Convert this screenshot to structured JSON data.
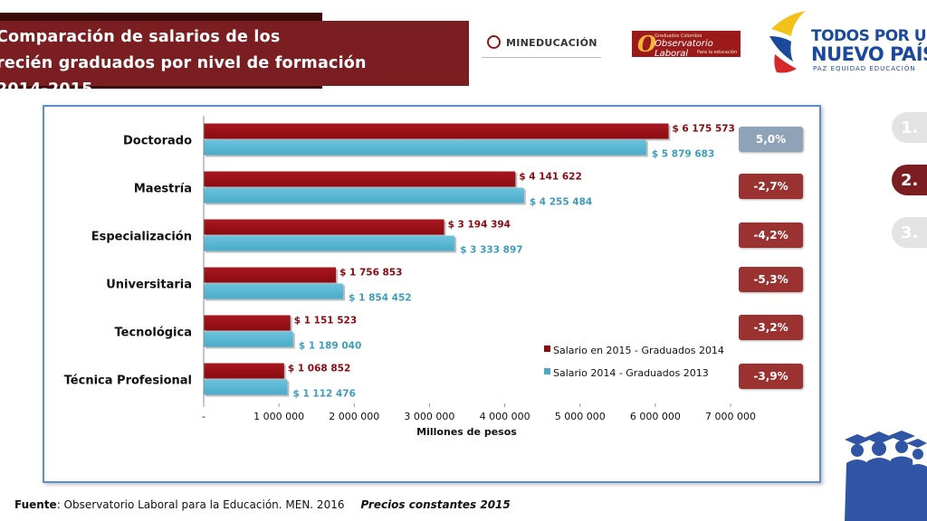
{
  "title": {
    "line1": "Comparación de salarios de los",
    "line2": "recién graduados por nivel de formación",
    "line3": "2014-2015"
  },
  "logos": {
    "men": "MINEDUCACIÓN",
    "ole_small1": "Graduados Colombia",
    "ole_main": "Observatorio Laboral",
    "ole_small2": "Para la educación",
    "gov_line1": "TODOS POR UN",
    "gov_line2": "NUEVO PAÍS",
    "gov_line3": "PAZ  EQUIDAD  EDUCACIÓN"
  },
  "nav": [
    "1.",
    "2.",
    "3."
  ],
  "footer": {
    "source_label": "Fuente",
    "source_text": ": Observatorio Laboral para la Educación. MEN. 2016",
    "prices": "Precios constantes  2015"
  },
  "colors": {
    "series2015": "#8b0a10",
    "series2014": "#4aabc9",
    "badge_positive": "#8fa3b8",
    "badge_negative": "#9b3232"
  },
  "chart_data": {
    "type": "bar",
    "orientation": "horizontal",
    "xlabel": "Millones de pesos",
    "xlim": [
      0,
      7000000
    ],
    "xticks": [
      "-",
      "1 000 000",
      "2 000 000",
      "3 000 000",
      "4 000 000",
      "5 000 000",
      "6 000 000",
      "7 000 000"
    ],
    "categories": [
      "Doctorado",
      "Maestría",
      "Especialización",
      "Universitaria",
      "Tecnológica",
      "Técnica Profesional"
    ],
    "series": [
      {
        "name": "Salario en 2015 - Graduados 2014",
        "values": [
          6175573,
          4141622,
          3194394,
          1756853,
          1151523,
          1068852
        ],
        "labels": [
          "$ 6 175 573",
          "$ 4 141 622",
          "$ 3 194 394",
          "$ 1 756 853",
          "$ 1 151 523",
          "$ 1 068 852"
        ]
      },
      {
        "name": "Salario 2014 - Graduados 2013",
        "values": [
          5879683,
          4255484,
          3333897,
          1854452,
          1189040,
          1112476
        ],
        "labels": [
          "$ 5 879 683",
          "$ 4 255 484",
          "$ 3 333 897",
          "$ 1 854 452",
          "$ 1 189 040",
          "$ 1 112 476"
        ]
      }
    ],
    "changes": [
      "5,0%",
      "-2,7%",
      "-4,2%",
      "-5,3%",
      "-3,2%",
      "-3,9%"
    ],
    "legend_position": "bottom-right"
  }
}
